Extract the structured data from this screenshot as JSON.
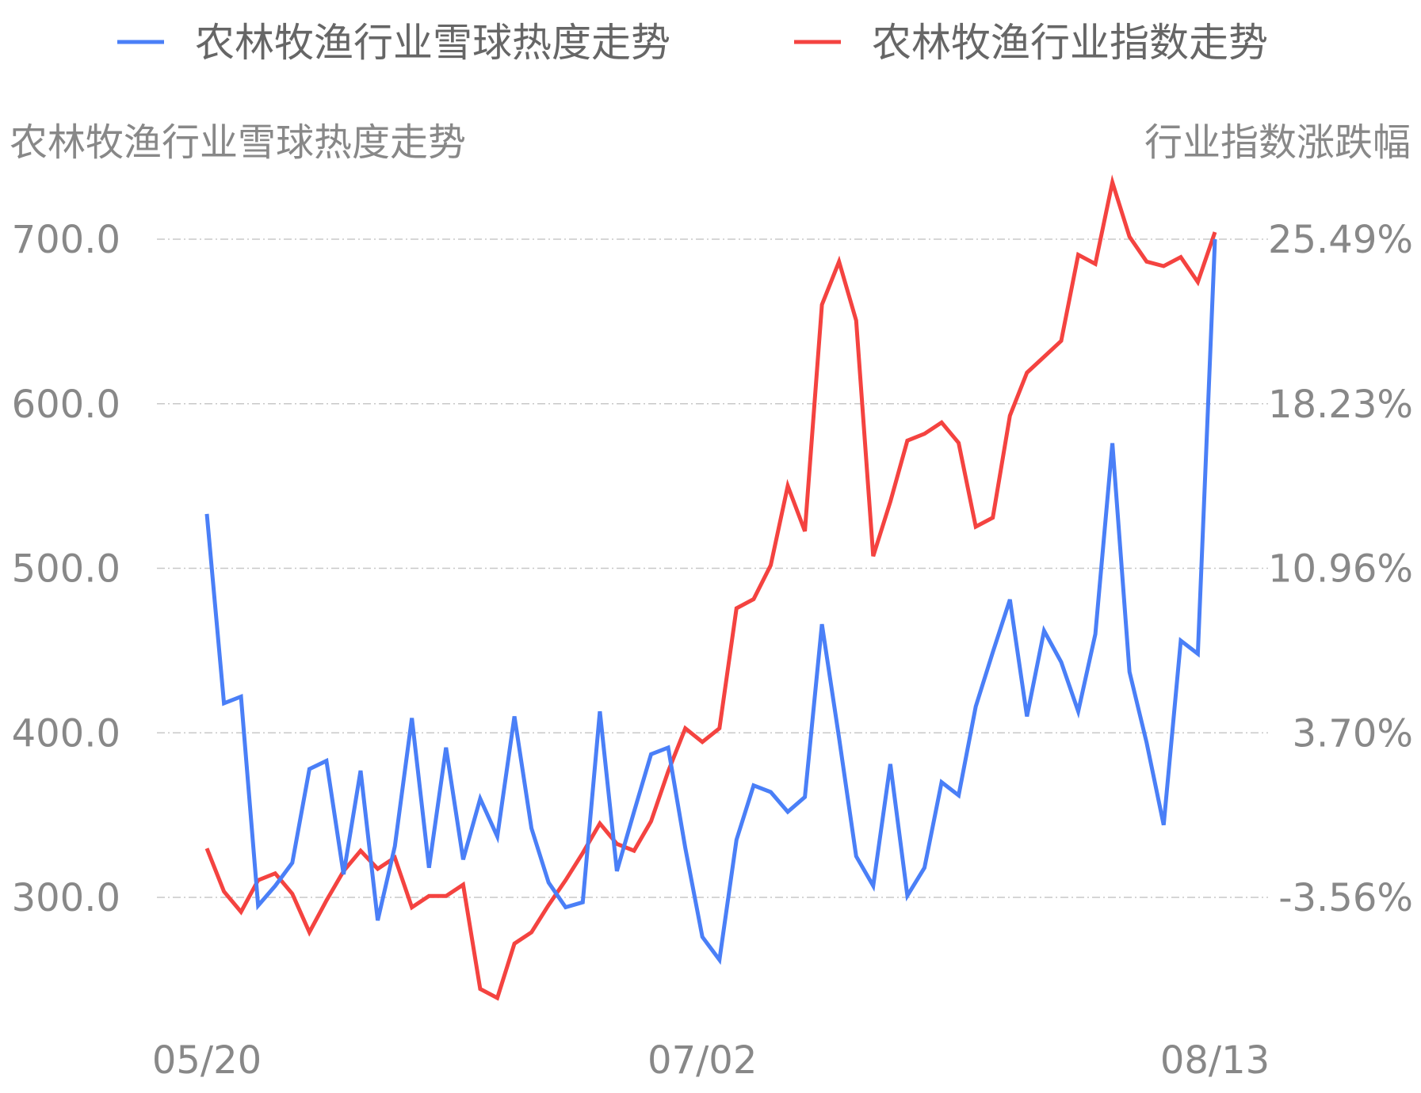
{
  "chart_data": {
    "type": "line",
    "legend_position": "top",
    "legend": [
      {
        "name": "农林牧渔行业雪球热度走势",
        "color": "#4a7ff7"
      },
      {
        "name": "农林牧渔行业指数走势",
        "color": "#f44340"
      }
    ],
    "ylabel_left": "农林牧渔行业雪球热度走势",
    "ylabel_right": "行业指数涨跌幅",
    "y_left_ticks": [
      "700.0",
      "600.0",
      "500.0",
      "400.0",
      "300.0"
    ],
    "y_right_ticks": [
      "25.49%",
      "18.23%",
      "10.96%",
      "3.70%",
      "-3.56%"
    ],
    "y_left_range": [
      300,
      700
    ],
    "y_right_range": [
      -3.56,
      25.49
    ],
    "x_tick_labels": [
      "05/20",
      "07/02",
      "08/13"
    ],
    "x_tick_positions": [
      0,
      29,
      59
    ],
    "grid": true,
    "series": [
      {
        "name": "农林牧渔行业雪球热度走势",
        "axis": "left",
        "color": "#4a7ff7",
        "values": [
          533,
          418,
          422,
          295,
          307,
          321,
          378,
          383,
          314,
          377,
          286,
          331,
          409,
          318,
          391,
          323,
          360,
          337,
          410,
          342,
          309,
          294,
          297,
          413,
          316,
          352,
          387,
          391,
          330,
          276,
          262,
          335,
          368,
          364,
          352,
          361,
          466,
          397,
          325,
          307,
          381,
          301,
          318,
          370,
          362,
          416,
          449,
          481,
          410,
          462,
          443,
          413,
          460,
          576,
          437,
          394,
          344,
          456,
          448,
          700
        ]
      },
      {
        "name": "农林牧渔行业指数走势",
        "axis": "right",
        "color": "#f44340",
        "values": [
          -1.4,
          -3.3,
          -4.2,
          -2.8,
          -2.5,
          -3.4,
          -5.1,
          -3.7,
          -2.4,
          -1.5,
          -2.3,
          -1.8,
          -4.0,
          -3.5,
          -3.5,
          -3.0,
          -7.6,
          -8.0,
          -5.6,
          -5.1,
          -3.9,
          -2.8,
          -1.6,
          -0.3,
          -1.2,
          -1.5,
          -0.2,
          2.0,
          3.9,
          3.3,
          3.9,
          9.2,
          9.6,
          11.1,
          14.6,
          12.6,
          22.6,
          24.5,
          21.9,
          11.5,
          13.9,
          16.6,
          16.9,
          17.4,
          16.5,
          12.8,
          13.2,
          17.7,
          19.6,
          20.3,
          21.0,
          24.8,
          24.4,
          28.0,
          25.6,
          24.5,
          24.3,
          24.7,
          23.6,
          25.8
        ]
      }
    ]
  }
}
